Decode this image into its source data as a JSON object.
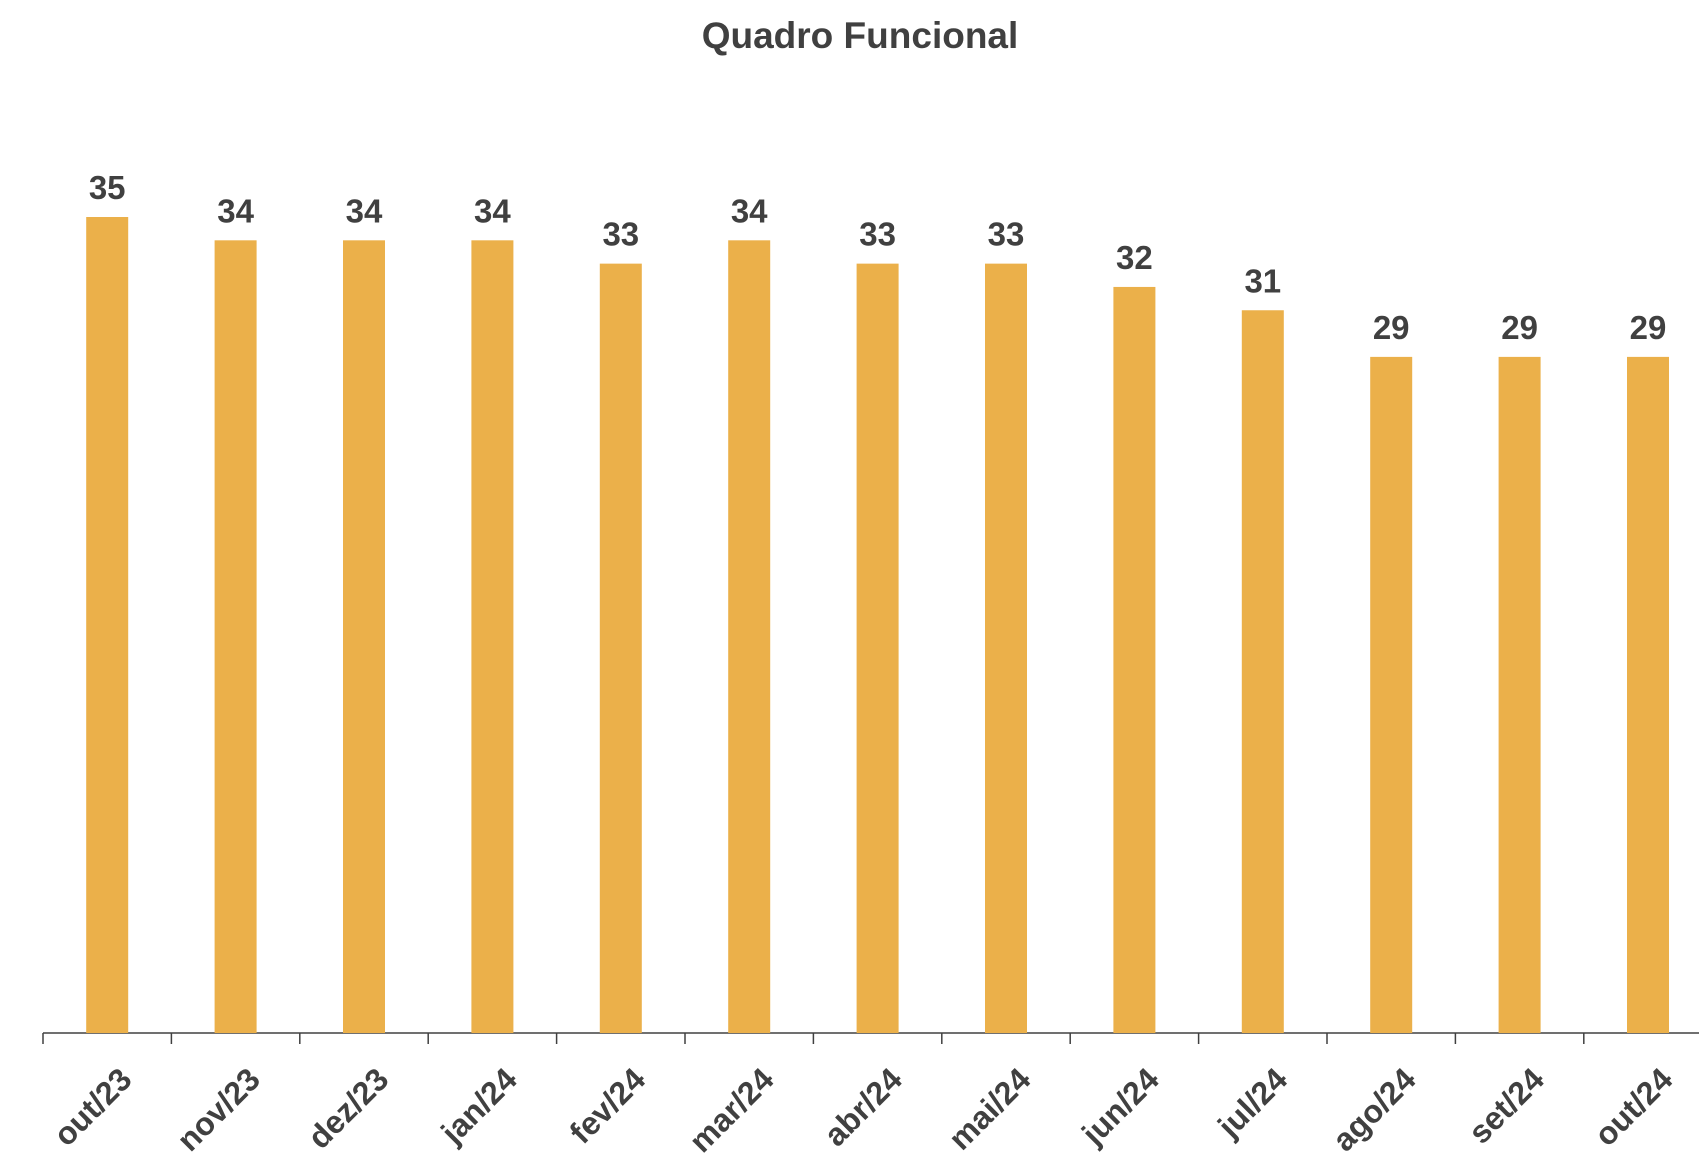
{
  "chart_data": {
    "type": "bar",
    "title": "Quadro Funcional",
    "categories": [
      "out/23",
      "nov/23",
      "dez/23",
      "jan/24",
      "fev/24",
      "mar/24",
      "abr/24",
      "mai/24",
      "jun/24",
      "jul/24",
      "ago/24",
      "set/24",
      "out/24"
    ],
    "values": [
      35,
      34,
      34,
      34,
      33,
      34,
      33,
      33,
      32,
      31,
      29,
      29,
      29
    ],
    "color": "#ebb04a",
    "ylim": [
      0,
      35
    ]
  }
}
